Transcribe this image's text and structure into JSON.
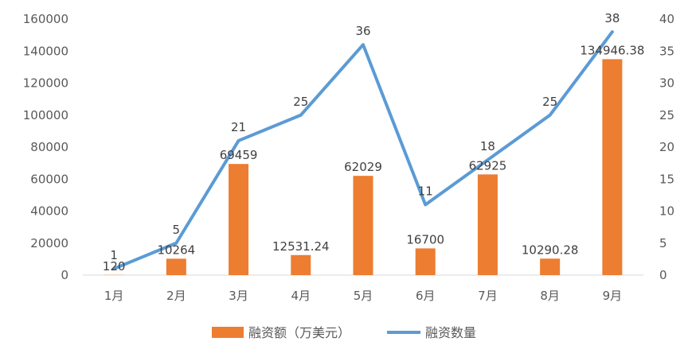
{
  "chart_data": {
    "type": "bar",
    "categories": [
      "1月",
      "2月",
      "3月",
      "4月",
      "5月",
      "6月",
      "7月",
      "8月",
      "9月"
    ],
    "series": [
      {
        "name": "融资额（万美元）",
        "type": "bar",
        "axis": "left",
        "color": "#ED7D31",
        "values": [
          120,
          10264,
          69459,
          12531.24,
          62029,
          16700,
          62925,
          10290.28,
          134946.38
        ],
        "labels": [
          "120",
          "10264",
          "69459",
          "12531.24",
          "62029",
          "16700",
          "62925",
          "10290.28",
          "134946.38"
        ]
      },
      {
        "name": "融资数量",
        "type": "line",
        "axis": "right",
        "color": "#5B9BD5",
        "values": [
          1,
          5,
          21,
          25,
          36,
          11,
          18,
          25,
          38
        ],
        "labels": [
          "1",
          "5",
          "21",
          "25",
          "36",
          "11",
          "18",
          "25",
          "38"
        ]
      }
    ],
    "y_left": {
      "ylim": [
        0,
        160000
      ],
      "ticks": [
        "0",
        "20000",
        "40000",
        "60000",
        "80000",
        "100000",
        "120000",
        "140000",
        "160000"
      ]
    },
    "y_right": {
      "ylim": [
        0,
        40
      ],
      "ticks": [
        "0",
        "5",
        "10",
        "15",
        "20",
        "25",
        "30",
        "35",
        "40"
      ]
    },
    "grid": false,
    "legend": "bottom"
  }
}
